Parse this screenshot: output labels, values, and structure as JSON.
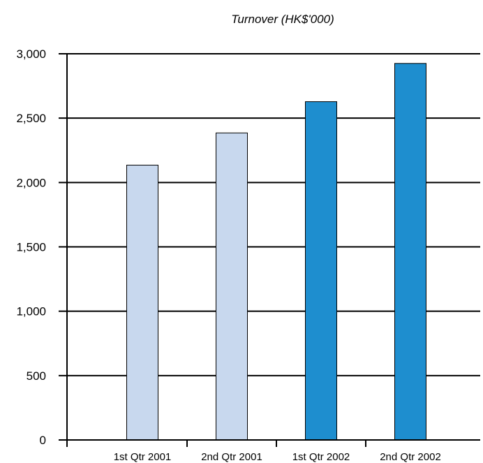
{
  "chart_data": {
    "type": "bar",
    "title": "Turnover (HK$'000)",
    "xlabel": "",
    "ylabel": "",
    "categories": [
      "1st Qtr 2001",
      "2nd Qtr 2001",
      "1st Qtr 2002",
      "2nd Qtr 2002"
    ],
    "values": [
      2135,
      2385,
      2628,
      2925
    ],
    "ylim": [
      0,
      3000
    ],
    "yticks": [
      0,
      500,
      1000,
      1500,
      2000,
      2500,
      3000
    ],
    "ytick_labels": [
      "0",
      "500",
      "1,000",
      "1,500",
      "2,000",
      "2,500",
      "3,000"
    ],
    "grid": true,
    "legend": "none",
    "bar_colors": [
      "#c8d8ee",
      "#c8d8ee",
      "#1e8ecf",
      "#1e8ecf"
    ],
    "bar_edge_color": "#000000",
    "grid_color": "#000000"
  }
}
